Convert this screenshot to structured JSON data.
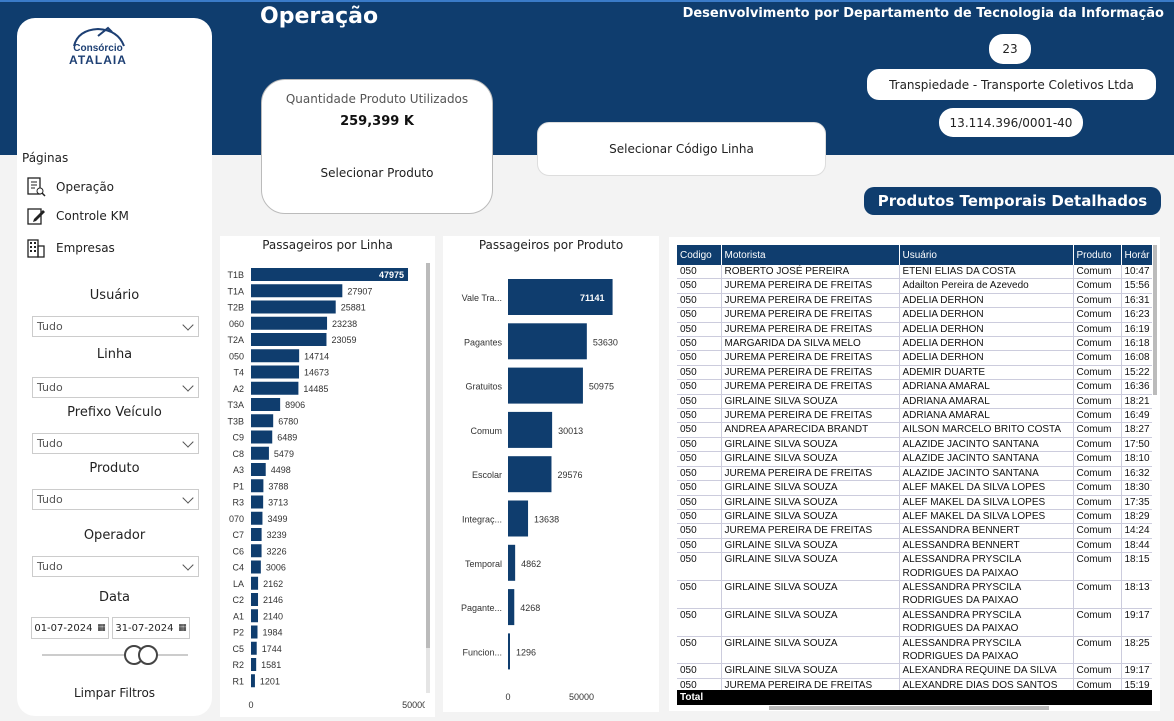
{
  "header": {
    "title": "Operação",
    "developer": "Desenvolvimento por Departamento de Tecnologia da Informação",
    "company_code": "23",
    "company_name": "Transpiedade - Transporte Coletivos Ltda",
    "cnpj": "13.114.396/0001-40"
  },
  "logo": {
    "top": "Consórcio",
    "bottom": "ATALAIA"
  },
  "sidebar": {
    "pages_label": "Páginas",
    "nav": [
      {
        "label": "Operação",
        "icon": "report-icon"
      },
      {
        "label": "Controle KM",
        "icon": "edit-icon"
      },
      {
        "label": "Empresas",
        "icon": "building-icon"
      }
    ],
    "filters": [
      {
        "label": "Usuário",
        "value": "Tudo"
      },
      {
        "label": "Linha",
        "value": "Tudo"
      },
      {
        "label": "Prefixo Veículo",
        "value": "Tudo"
      },
      {
        "label": "Produto",
        "value": "Tudo"
      },
      {
        "label": "Operador",
        "value": "Tudo"
      }
    ],
    "date_label": "Data",
    "date_start": "01-07-2024",
    "date_end": "31-07-2024",
    "clear_label": "Limpar Filtros"
  },
  "kpi": {
    "label": "Quantidade Produto Utilizados",
    "value": "259,399 K",
    "product_selector": "Selecionar Produto",
    "line_selector": "Selecionar Código Linha"
  },
  "chart_data": [
    {
      "type": "bar",
      "orientation": "horizontal",
      "title": "Passageiros por Linha",
      "categories": [
        "T1B",
        "T1A",
        "T2B",
        "060",
        "T2A",
        "050",
        "T4",
        "A2",
        "T3A",
        "T3B",
        "C9",
        "C8",
        "A3",
        "P1",
        "R3",
        "070",
        "C7",
        "C6",
        "C4",
        "LA",
        "C2",
        "A1",
        "P2",
        "C5",
        "R2",
        "R1"
      ],
      "values": [
        47975,
        27907,
        25881,
        23238,
        23059,
        14714,
        14673,
        14485,
        8906,
        6780,
        6489,
        5479,
        4498,
        3788,
        3713,
        3499,
        3239,
        3226,
        3006,
        2162,
        2146,
        2140,
        1984,
        1744,
        1581,
        1201
      ],
      "xticks": [
        "0",
        "50000"
      ],
      "xlim": [
        0,
        55000
      ],
      "color": "#0f3d6e"
    },
    {
      "type": "bar",
      "orientation": "horizontal",
      "title": "Passageiros por Produto",
      "categories": [
        "Vale Tra...",
        "Pagantes",
        "Gratuitos",
        "Comum",
        "Escolar",
        "Integraç...",
        "Temporal",
        "Pagante...",
        "Funcion..."
      ],
      "values": [
        71141,
        53630,
        50975,
        30013,
        29576,
        13638,
        4862,
        4268,
        1296
      ],
      "xticks": [
        "0",
        "50000"
      ],
      "xlim": [
        0,
        100000
      ],
      "color": "#0f3d6e"
    }
  ],
  "table": {
    "title": "Produtos Temporais Detalhados",
    "columns": [
      "Codigo",
      "Motorista",
      "Usuário",
      "Produto",
      "Horár"
    ],
    "rows": [
      [
        "050",
        "ROBERTO JOSÉ PEREIRA",
        "ETENI ELIAS DA COSTA",
        "Comum",
        "10:47"
      ],
      [
        "050",
        "JUREMA PEREIRA DE FREITAS",
        "Adailton Pereira de Azevedo",
        "Comum",
        "15:56"
      ],
      [
        "050",
        "JUREMA PEREIRA DE FREITAS",
        "ADELIA DERHON",
        "Comum",
        "16:31"
      ],
      [
        "050",
        "JUREMA PEREIRA DE FREITAS",
        "ADELIA DERHON",
        "Comum",
        "16:23"
      ],
      [
        "050",
        "JUREMA PEREIRA DE FREITAS",
        "ADELIA DERHON",
        "Comum",
        "16:19"
      ],
      [
        "050",
        "MARGARIDA DA SILVA MELO",
        "ADELIA DERHON",
        "Comum",
        "16:18"
      ],
      [
        "050",
        "JUREMA PEREIRA DE FREITAS",
        "ADELIA DERHON",
        "Comum",
        "16:08"
      ],
      [
        "050",
        "JUREMA PEREIRA DE FREITAS",
        "ADEMIR DUARTE",
        "Comum",
        "15:22"
      ],
      [
        "050",
        "JUREMA PEREIRA DE FREITAS",
        "ADRIANA AMARAL",
        "Comum",
        "16:36"
      ],
      [
        "050",
        "GIRLAINE SILVA SOUZA",
        "ADRIANA AMARAL",
        "Comum",
        "18:21"
      ],
      [
        "050",
        "JUREMA PEREIRA DE FREITAS",
        "ADRIANA AMARAL",
        "Comum",
        "16:49"
      ],
      [
        "050",
        "ANDREA APARECIDA BRANDT",
        "AILSON MARCELO BRITO COSTA",
        "Comum",
        "18:27"
      ],
      [
        "050",
        "GIRLAINE SILVA SOUZA",
        "ALAZIDE JACINTO SANTANA",
        "Comum",
        "17:50"
      ],
      [
        "050",
        "GIRLAINE SILVA SOUZA",
        "ALAZIDE JACINTO SANTANA",
        "Comum",
        "18:10"
      ],
      [
        "050",
        "JUREMA PEREIRA DE FREITAS",
        "ALAZIDE JACINTO SANTANA",
        "Comum",
        "16:32"
      ],
      [
        "050",
        "GIRLAINE SILVA SOUZA",
        "ALEF MAKEL DA SILVA LOPES",
        "Comum",
        "18:30"
      ],
      [
        "050",
        "GIRLAINE SILVA SOUZA",
        "ALEF MAKEL DA SILVA LOPES",
        "Comum",
        "17:35"
      ],
      [
        "050",
        "GIRLAINE SILVA SOUZA",
        "ALEF MAKEL DA SILVA LOPES",
        "Comum",
        "18:29"
      ],
      [
        "050",
        "JUREMA PEREIRA DE FREITAS",
        "ALESSANDRA BENNERT",
        "Comum",
        "14:24"
      ],
      [
        "050",
        "GIRLAINE SILVA SOUZA",
        "ALESSANDRA BENNERT",
        "Comum",
        "18:44"
      ],
      [
        "050",
        "GIRLAINE SILVA SOUZA",
        "ALESSANDRA PRYSCILA\nRODRIGUES DA PAIXAO",
        "Comum",
        "18:15"
      ],
      [
        "050",
        "GIRLAINE SILVA SOUZA",
        "ALESSANDRA PRYSCILA\nRODRIGUES DA PAIXAO",
        "Comum",
        "18:13"
      ],
      [
        "050",
        "GIRLAINE SILVA SOUZA",
        "ALESSANDRA PRYSCILA\nRODRIGUES DA PAIXAO",
        "Comum",
        "19:17"
      ],
      [
        "050",
        "GIRLAINE SILVA SOUZA",
        "ALESSANDRA PRYSCILA\nRODRIGUES DA PAIXAO",
        "Comum",
        "18:25"
      ],
      [
        "050",
        "GIRLAINE SILVA SOUZA",
        "ALEXANDRA REQUINE DA SILVA",
        "Comum",
        "19:17"
      ],
      [
        "050",
        "JUREMA PEREIRA DE FREITAS",
        "ALEXANDRE DIAS DOS SANTOS",
        "Comum",
        "15:19"
      ]
    ],
    "total_label": "Total"
  }
}
